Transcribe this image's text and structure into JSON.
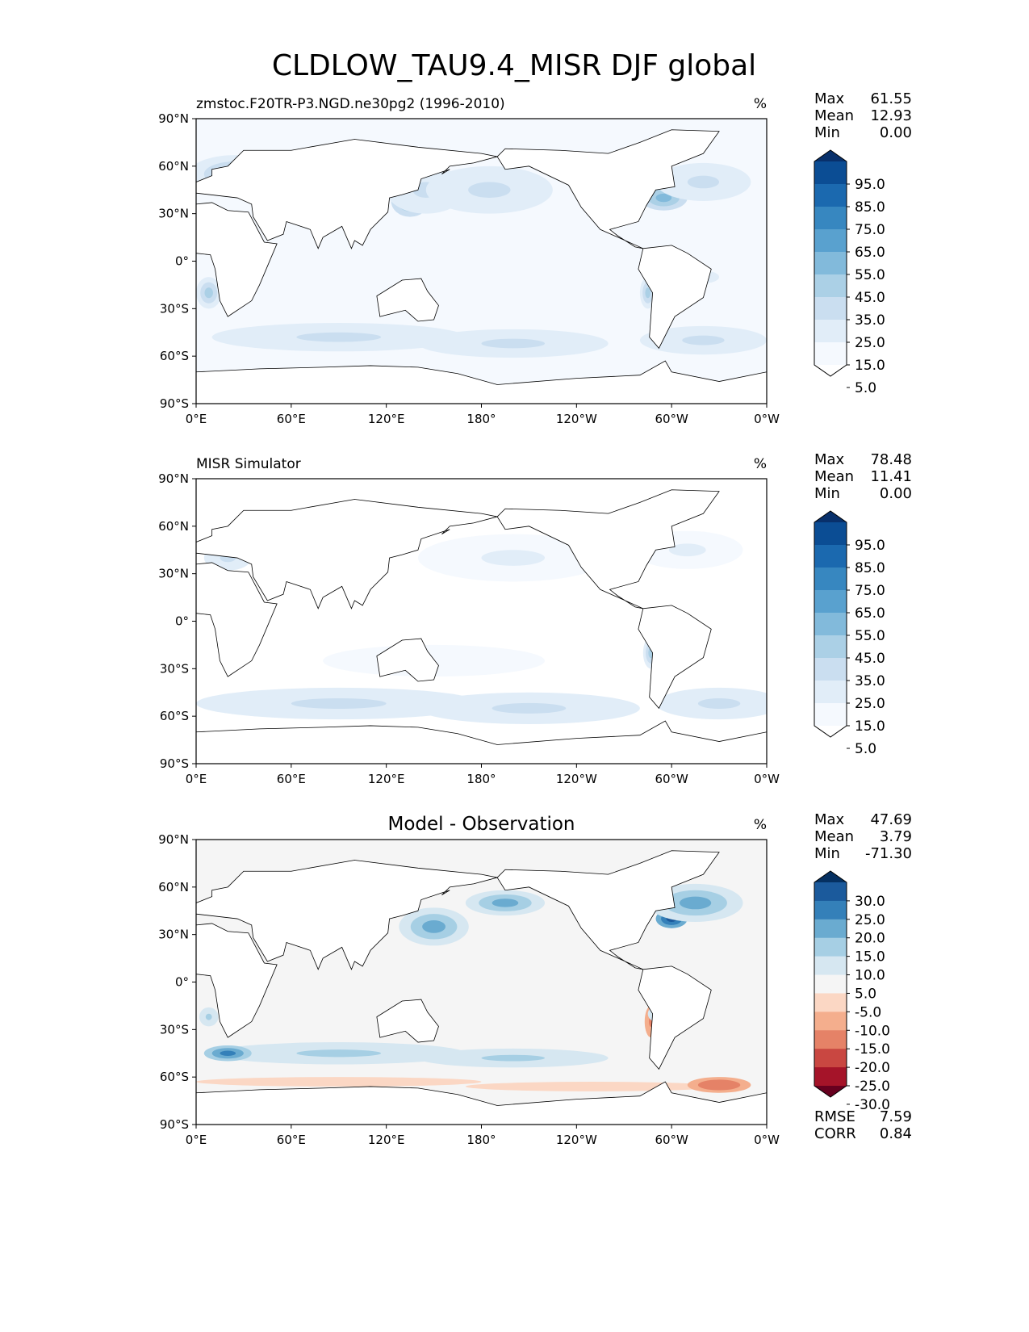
{
  "figure": {
    "title": "CLDLOW_TAU9.4_MISR DJF global"
  },
  "chart_data": [
    {
      "type": "heatmap",
      "panel": "model",
      "title": "zmstoc.F20TR-P3.NGD.ne30pg2 (1996-2010)",
      "title_align": "left",
      "units": "%",
      "stats": [
        {
          "label": "Max",
          "value": "61.55"
        },
        {
          "label": "Mean",
          "value": "12.93"
        },
        {
          "label": "Min",
          "value": "0.00"
        }
      ],
      "colormap": "Blues",
      "colorbar": {
        "levels": [
          0,
          5,
          15,
          25,
          35,
          45,
          55,
          65,
          75,
          85,
          95,
          100
        ],
        "tick_labels": [
          "5.0",
          "15.0",
          "25.0",
          "35.0",
          "45.0",
          "55.0",
          "65.0",
          "75.0",
          "85.0",
          "95.0"
        ],
        "colors": [
          "#ffffff",
          "#f5f9fe",
          "#e1edf8",
          "#cadef0",
          "#abd0e6",
          "#82badb",
          "#59a1cf",
          "#3787c0",
          "#1b69af",
          "#0b4d94",
          "#08306b"
        ],
        "extend": "both"
      },
      "x_ticks": [
        "0°E",
        "60°E",
        "120°E",
        "180°",
        "120°W",
        "60°W",
        "0°W"
      ],
      "y_ticks": [
        "90°N",
        "60°N",
        "30°N",
        "0°",
        "30°S",
        "60°S",
        "90°S"
      ],
      "xlim": [
        0,
        360
      ],
      "ylim": [
        -90,
        90
      ],
      "field_blobs": [
        {
          "lon": 25,
          "lat": 55,
          "rlon": 30,
          "rlat": 12,
          "v": 35
        },
        {
          "lon": 135,
          "lat": 38,
          "rlon": 12,
          "rlat": 10,
          "v": 55
        },
        {
          "lon": 145,
          "lat": 45,
          "rlon": 25,
          "rlat": 15,
          "v": 25
        },
        {
          "lon": 185,
          "lat": 45,
          "rlon": 40,
          "rlat": 15,
          "v": 25
        },
        {
          "lon": 295,
          "lat": 40,
          "rlon": 15,
          "rlat": 8,
          "v": 50
        },
        {
          "lon": 320,
          "lat": 50,
          "rlon": 30,
          "rlat": 12,
          "v": 30
        },
        {
          "lon": 90,
          "lat": -48,
          "rlon": 80,
          "rlat": 9,
          "v": 30
        },
        {
          "lon": 200,
          "lat": -52,
          "rlon": 60,
          "rlat": 9,
          "v": 30
        },
        {
          "lon": 320,
          "lat": -50,
          "rlon": 40,
          "rlat": 9,
          "v": 30
        },
        {
          "lon": 8,
          "lat": -20,
          "rlon": 8,
          "rlat": 10,
          "v": 35
        },
        {
          "lon": 285,
          "lat": -20,
          "rlon": 5,
          "rlat": 10,
          "v": 35
        },
        {
          "lon": 150,
          "lat": 5,
          "rlon": 70,
          "rlat": 10,
          "v": 12
        },
        {
          "lon": 320,
          "lat": -10,
          "rlon": 30,
          "rlat": 12,
          "v": 15
        }
      ]
    },
    {
      "type": "heatmap",
      "panel": "observation",
      "title": "MISR Simulator",
      "title_align": "left",
      "units": "%",
      "stats": [
        {
          "label": "Max",
          "value": "78.48"
        },
        {
          "label": "Mean",
          "value": "11.41"
        },
        {
          "label": "Min",
          "value": "0.00"
        }
      ],
      "colormap": "Blues",
      "colorbar": {
        "levels": [
          0,
          5,
          15,
          25,
          35,
          45,
          55,
          65,
          75,
          85,
          95,
          100
        ],
        "tick_labels": [
          "5.0",
          "15.0",
          "25.0",
          "35.0",
          "45.0",
          "55.0",
          "65.0",
          "75.0",
          "85.0",
          "95.0"
        ],
        "colors": [
          "#ffffff",
          "#f5f9fe",
          "#e1edf8",
          "#cadef0",
          "#abd0e6",
          "#82badb",
          "#59a1cf",
          "#3787c0",
          "#1b69af",
          "#0b4d94",
          "#08306b"
        ],
        "extend": "both"
      },
      "x_ticks": [
        "0°E",
        "60°E",
        "120°E",
        "180°",
        "120°W",
        "60°W",
        "0°W"
      ],
      "y_ticks": [
        "90°N",
        "60°N",
        "30°N",
        "0°",
        "30°S",
        "60°S",
        "90°S"
      ],
      "xlim": [
        0,
        360
      ],
      "ylim": [
        -90,
        90
      ],
      "field_blobs": [
        {
          "lon": 20,
          "lat": 40,
          "rlon": 15,
          "rlat": 8,
          "v": 25
        },
        {
          "lon": 200,
          "lat": 40,
          "rlon": 60,
          "rlat": 15,
          "v": 15
        },
        {
          "lon": 310,
          "lat": 45,
          "rlon": 35,
          "rlat": 12,
          "v": 15
        },
        {
          "lon": 90,
          "lat": -52,
          "rlon": 90,
          "rlat": 10,
          "v": 25
        },
        {
          "lon": 210,
          "lat": -55,
          "rlon": 70,
          "rlat": 10,
          "v": 25
        },
        {
          "lon": 330,
          "lat": -52,
          "rlon": 40,
          "rlat": 10,
          "v": 25
        },
        {
          "lon": 287,
          "lat": -20,
          "rlon": 5,
          "rlat": 10,
          "v": 35
        },
        {
          "lon": 150,
          "lat": -25,
          "rlon": 70,
          "rlat": 10,
          "v": 12
        }
      ]
    },
    {
      "type": "heatmap",
      "panel": "difference",
      "title": "Model - Observation",
      "title_align": "center",
      "units": "%",
      "stats": [
        {
          "label": "Max",
          "value": "47.69"
        },
        {
          "label": "Mean",
          "value": "3.79"
        },
        {
          "label": "Min",
          "value": "-71.30"
        }
      ],
      "metrics": [
        {
          "label": "RMSE",
          "value": "7.59"
        },
        {
          "label": "CORR",
          "value": "0.84"
        }
      ],
      "colormap": "RdBu",
      "colorbar": {
        "levels": [
          -35,
          -30,
          -25,
          -20,
          -15,
          -10,
          -5,
          5,
          10,
          15,
          20,
          25,
          30,
          35
        ],
        "tick_labels": [
          "-30.0",
          "-25.0",
          "-20.0",
          "-15.0",
          "-10.0",
          "-5.0",
          "5.0",
          "10.0",
          "15.0",
          "20.0",
          "25.0",
          "30.0"
        ],
        "colors": [
          "#67001f",
          "#a51429",
          "#c94741",
          "#e58267",
          "#f4ae8d",
          "#fbd7c4",
          "#f5f5f5",
          "#d6e7f1",
          "#a6cfe4",
          "#6aabd0",
          "#3480b9",
          "#1b5a9c",
          "#053061"
        ],
        "extend": "both"
      },
      "x_ticks": [
        "0°E",
        "60°E",
        "120°E",
        "180°",
        "120°W",
        "60°W",
        "0°W"
      ],
      "y_ticks": [
        "90°N",
        "60°N",
        "30°N",
        "0°",
        "30°S",
        "60°S",
        "90°S"
      ],
      "xlim": [
        0,
        360
      ],
      "ylim": [
        -90,
        90
      ],
      "field_blobs": [
        {
          "lon": 140,
          "lat": 35,
          "rlon": 10,
          "rlat": 8,
          "v": 32
        },
        {
          "lon": 150,
          "lat": 35,
          "rlon": 22,
          "rlat": 12,
          "v": 15
        },
        {
          "lon": 195,
          "lat": 50,
          "rlon": 25,
          "rlat": 8,
          "v": 15
        },
        {
          "lon": 300,
          "lat": 40,
          "rlon": 10,
          "rlat": 6,
          "v": 28
        },
        {
          "lon": 315,
          "lat": 50,
          "rlon": 30,
          "rlat": 12,
          "v": 15
        },
        {
          "lon": 90,
          "lat": -45,
          "rlon": 80,
          "rlat": 7,
          "v": 12
        },
        {
          "lon": 200,
          "lat": -48,
          "rlon": 60,
          "rlat": 6,
          "v": 10
        },
        {
          "lon": 20,
          "lat": -45,
          "rlon": 15,
          "rlat": 5,
          "v": 20
        },
        {
          "lon": 90,
          "lat": -63,
          "rlon": 90,
          "rlat": 3,
          "v": -10
        },
        {
          "lon": 250,
          "lat": -66,
          "rlon": 80,
          "rlat": 3,
          "v": -10
        },
        {
          "lon": 330,
          "lat": -65,
          "rlon": 20,
          "rlat": 5,
          "v": -20
        },
        {
          "lon": 287,
          "lat": -25,
          "rlon": 4,
          "rlat": 10,
          "v": -18
        },
        {
          "lon": 8,
          "lat": -22,
          "rlon": 6,
          "rlat": 6,
          "v": 10
        },
        {
          "lon": 300,
          "lat": -20,
          "rlon": 15,
          "rlat": 8,
          "v": 10
        }
      ]
    }
  ]
}
